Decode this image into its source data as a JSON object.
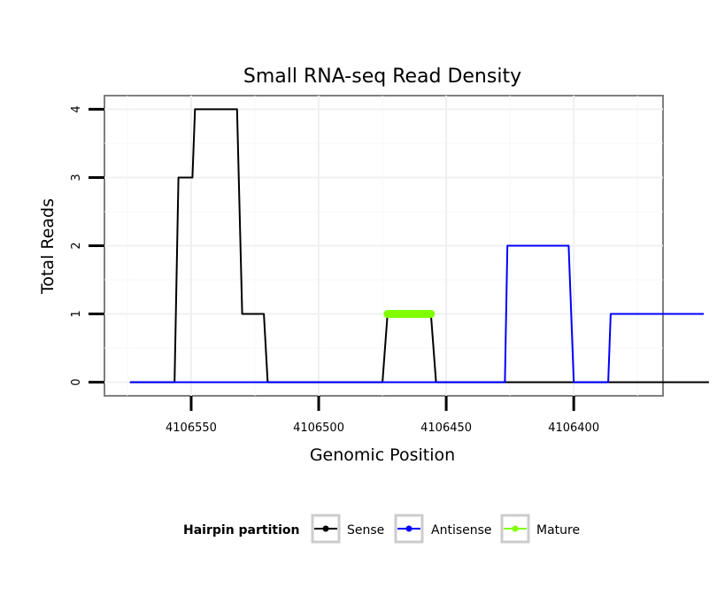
{
  "chart_data": {
    "type": "line",
    "title": "Small RNA-seq Read Density",
    "xlabel": "Genomic Position",
    "ylabel": "Total Reads",
    "x_reversed": true,
    "xlim": [
      4106584,
      4106365
    ],
    "ylim": [
      -0.2,
      4.2
    ],
    "x_ticks": [
      4106550,
      4106500,
      4106450,
      4106400
    ],
    "x_tick_labels": [
      "4106550",
      "4106500",
      "4106450",
      "4106400"
    ],
    "y_ticks": [
      0,
      1,
      2,
      3,
      4
    ],
    "y_tick_labels": [
      "0",
      "1",
      "2",
      "3",
      "4"
    ],
    "grid": true,
    "legend": {
      "title": "Hairpin partition",
      "position": "bottom",
      "entries": [
        "Sense",
        "Antisense",
        "Mature"
      ]
    },
    "series": [
      {
        "name": "Sense",
        "color": "#000000",
        "x": [
          4106574,
          4106556.5,
          4106555,
          4106549.5,
          4106548.5,
          4106532,
          4106530,
          4106521.5,
          4106520,
          4106475,
          4106473,
          4106456,
          4106454,
          4106347
        ],
        "y": [
          0,
          0,
          3,
          3,
          4,
          4,
          1,
          1,
          0,
          0,
          1,
          1,
          0,
          0
        ]
      },
      {
        "name": "Antisense",
        "color": "#0000ff",
        "x": [
          4106574,
          4106427,
          4106426,
          4106402,
          4106400,
          4106386.5,
          4106385.5,
          4106349
        ],
        "y": [
          0,
          0,
          2,
          2,
          0,
          0,
          1,
          1
        ]
      },
      {
        "name": "Mature",
        "color": "#7fff00",
        "x": [
          4106473,
          4106456
        ],
        "y": [
          1,
          1
        ]
      }
    ]
  }
}
